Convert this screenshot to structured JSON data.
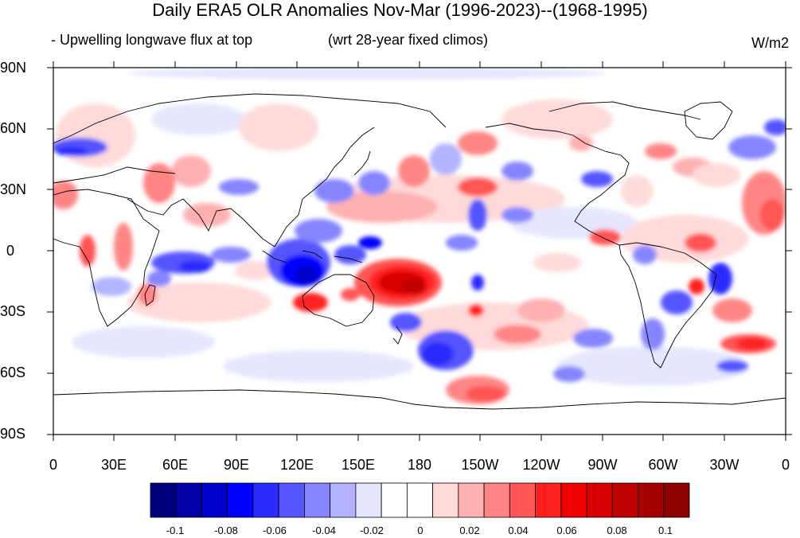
{
  "title": "Daily ERA5 OLR Anomalies Nov-Mar (1996-2023)--(1968-1995)",
  "subtitle_left": "- Upwelling longwave flux at top",
  "subtitle_mid": "(wrt 28-year fixed climos)",
  "units": "W/m2",
  "lat_labels": [
    "90N",
    "60N",
    "30N",
    "0",
    "30S",
    "60S",
    "90S"
  ],
  "lon_labels": [
    "0",
    "30E",
    "60E",
    "90E",
    "120E",
    "150E",
    "180",
    "150W",
    "120W",
    "90W",
    "60W",
    "30W",
    "0"
  ],
  "colorbar": {
    "labels": [
      "-0.1",
      "-0.08",
      "-0.06",
      "-0.04",
      "-0.02",
      "0",
      "0.02",
      "0.04",
      "0.06",
      "0.08",
      "0.1"
    ],
    "colors": [
      "#00007f",
      "#0000a6",
      "#0000cc",
      "#0000ff",
      "#2b2bff",
      "#5555ff",
      "#8585ff",
      "#b3b3ff",
      "#e6e6ff",
      "#ffffff",
      "#ffffff",
      "#ffdada",
      "#ffb0b0",
      "#ff8585",
      "#ff5555",
      "#ff2020",
      "#f00000",
      "#d80000",
      "#bf0000",
      "#a60000",
      "#8c0000"
    ]
  },
  "colors": {
    "land_outline": "#000000",
    "frame": "#000000"
  }
}
